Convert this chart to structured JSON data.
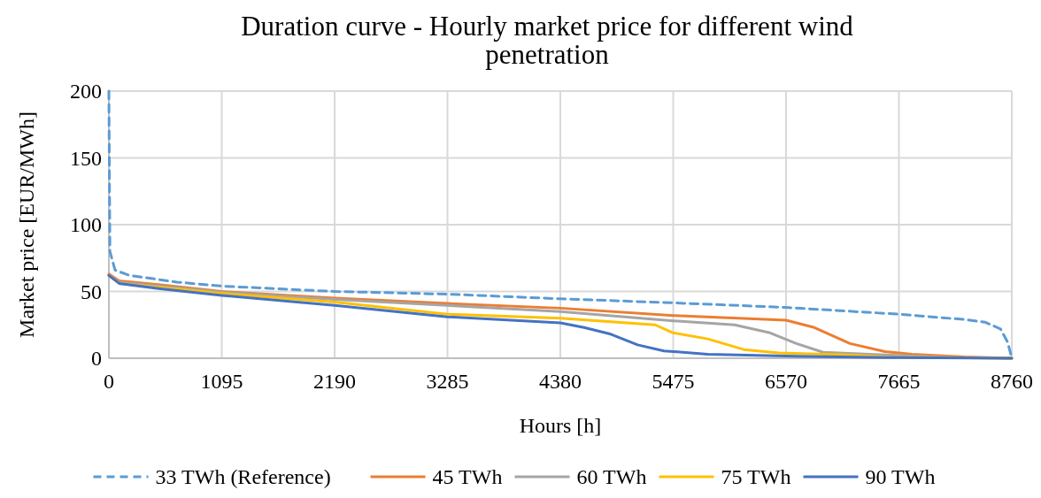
{
  "chart_data": {
    "type": "line",
    "title": "Duration curve - Hourly market price for different wind penetration",
    "xlabel": "Hours [h]",
    "ylabel": "Market price [EUR/MWh]",
    "xlim": [
      0,
      8760
    ],
    "xticks": [
      0,
      1095,
      2190,
      3285,
      4380,
      5475,
      6570,
      7665,
      8760
    ],
    "ylim": [
      0,
      200
    ],
    "yticks": [
      0,
      50,
      100,
      150,
      200
    ],
    "grid": true,
    "legend": "bottom",
    "series": [
      {
        "name": "33 TWh (Reference)",
        "color": "#5b9bd5",
        "line_style": "dashed",
        "x": [
          0,
          10,
          60,
          200,
          660,
          1095,
          2190,
          3285,
          4380,
          5475,
          6570,
          7665,
          8300,
          8500,
          8650,
          8720,
          8760
        ],
        "values": [
          200,
          80,
          66,
          62,
          57,
          54,
          50,
          48,
          44.5,
          41.5,
          38,
          33,
          29,
          27,
          22,
          12,
          0
        ]
      },
      {
        "name": "45 TWh",
        "color": "#ed7d31",
        "line_style": "solid",
        "x": [
          0,
          100,
          500,
          1095,
          2190,
          3285,
          4380,
          5475,
          6570,
          6845,
          7190,
          7530,
          7790,
          8300,
          8760
        ],
        "values": [
          63,
          58,
          55,
          50,
          45,
          41,
          37.5,
          32,
          28.5,
          23,
          11,
          5,
          3,
          1,
          0
        ]
      },
      {
        "name": "60 TWh",
        "color": "#a5a5a5",
        "line_style": "solid",
        "x": [
          0,
          100,
          500,
          1095,
          2190,
          3285,
          4380,
          5475,
          6070,
          6415,
          6670,
          6930,
          7530,
          8200,
          8760
        ],
        "values": [
          62,
          57,
          54,
          49.5,
          44,
          39.5,
          35,
          28,
          25,
          19,
          11,
          4.5,
          2.5,
          0.5,
          0
        ]
      },
      {
        "name": "75 TWh",
        "color": "#ffc000",
        "line_style": "solid",
        "x": [
          0,
          100,
          500,
          1095,
          2190,
          3285,
          4380,
          5300,
          5475,
          5810,
          6160,
          6500,
          7190,
          7530,
          8760
        ],
        "values": [
          62,
          56,
          53,
          48.5,
          42,
          33,
          30,
          25,
          19,
          14.5,
          6.5,
          4,
          2.5,
          1,
          0
        ]
      },
      {
        "name": "90 TWh",
        "color": "#4472c4",
        "line_style": "solid",
        "x": [
          0,
          100,
          500,
          1095,
          2190,
          3285,
          4380,
          4610,
          4870,
          5130,
          5385,
          5810,
          6670,
          7530,
          8760
        ],
        "values": [
          62,
          56,
          52,
          47,
          39.5,
          31,
          26.5,
          23,
          18,
          10,
          5.5,
          3,
          1.5,
          0.5,
          0
        ]
      }
    ]
  }
}
